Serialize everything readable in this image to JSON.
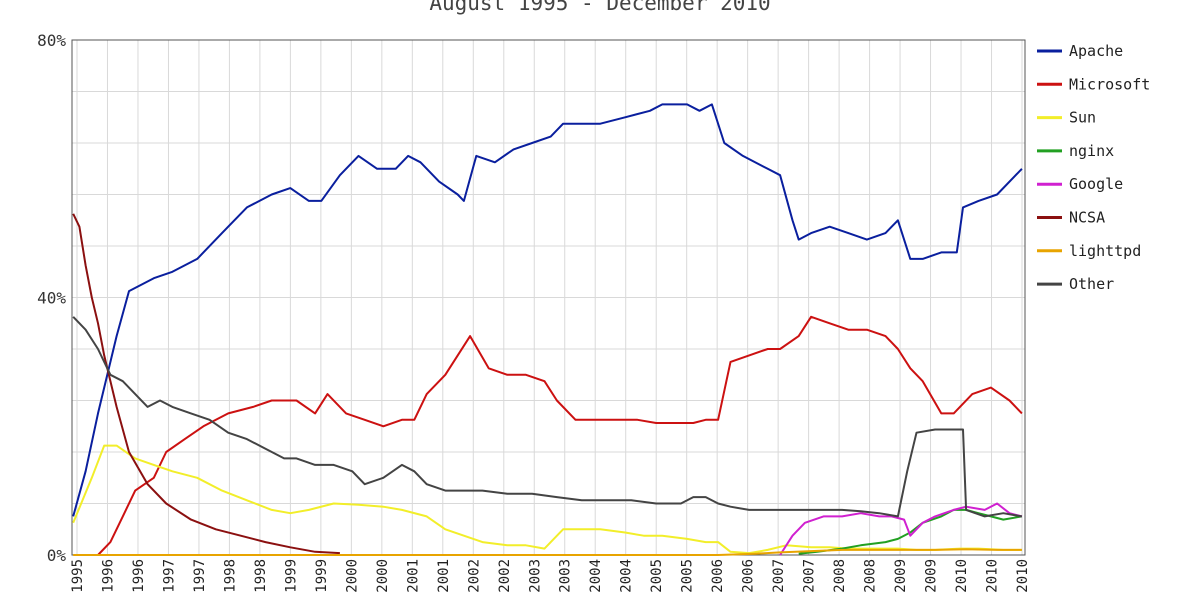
{
  "chart_data": {
    "type": "line",
    "subtitle": "August 1995 - December 2010",
    "xlabel": "",
    "ylabel": "",
    "ylim": [
      0,
      80
    ],
    "xlim": [
      1995.58,
      2010.95
    ],
    "grid": true,
    "legend_position": "right",
    "yticks": [
      "80%",
      "40%",
      "0%"
    ],
    "xticks": [
      "1995",
      "1996",
      "1996",
      "1997",
      "1997",
      "1998",
      "1998",
      "1999",
      "1999",
      "2000",
      "2000",
      "2001",
      "2001",
      "2002",
      "2002",
      "2003",
      "2003",
      "2004",
      "2004",
      "2005",
      "2005",
      "2006",
      "2006",
      "2007",
      "2007",
      "2008",
      "2008",
      "2009",
      "2009",
      "2010",
      "2010",
      "2010"
    ],
    "series": [
      {
        "name": "Apache",
        "color": "#0a1f9e",
        "x": [
          1995.6,
          1995.8,
          1996.0,
          1996.3,
          1996.5,
          1996.9,
          1997.2,
          1997.6,
          1998.0,
          1998.4,
          1998.8,
          1999.1,
          1999.4,
          1999.6,
          1999.9,
          2000.2,
          2000.5,
          2000.8,
          2001.0,
          2001.2,
          2001.5,
          2001.8,
          2001.9,
          2002.1,
          2002.4,
          2002.7,
          2003.0,
          2003.3,
          2003.5,
          2003.8,
          2004.1,
          2004.5,
          2004.9,
          2005.1,
          2005.5,
          2005.7,
          2005.9,
          2006.1,
          2006.4,
          2006.8,
          2007.0,
          2007.2,
          2007.3,
          2007.5,
          2007.8,
          2008.1,
          2008.4,
          2008.7,
          2008.9,
          2009.1,
          2009.3,
          2009.6,
          2009.85,
          2009.95,
          2010.2,
          2010.5,
          2010.8,
          2010.9
        ],
        "y": [
          6,
          13,
          22,
          34,
          41,
          43,
          44,
          46,
          50,
          54,
          56,
          57,
          55,
          55,
          59,
          62,
          60,
          60,
          62,
          61,
          58,
          56,
          55,
          62,
          61,
          63,
          64,
          65,
          67,
          67,
          67,
          68,
          69,
          70,
          70,
          69,
          70,
          64,
          62,
          60,
          59,
          52,
          49,
          50,
          51,
          50,
          49,
          50,
          52,
          46,
          46,
          47,
          47,
          54,
          55,
          56,
          59,
          60
        ]
      },
      {
        "name": "Microsoft",
        "color": "#cc1111",
        "x": [
          1996.0,
          1996.2,
          1996.4,
          1996.6,
          1996.9,
          1997.1,
          1997.4,
          1997.7,
          1998.1,
          1998.5,
          1998.8,
          1999.2,
          1999.5,
          1999.7,
          2000.0,
          2000.3,
          2000.6,
          2000.9,
          2001.1,
          2001.3,
          2001.6,
          2001.8,
          2002.0,
          2002.3,
          2002.6,
          2002.9,
          2003.2,
          2003.4,
          2003.7,
          2004.0,
          2004.3,
          2004.7,
          2005.0,
          2005.3,
          2005.6,
          2005.8,
          2006.0,
          2006.2,
          2006.5,
          2006.8,
          2007.0,
          2007.3,
          2007.5,
          2007.8,
          2008.1,
          2008.4,
          2008.7,
          2008.9,
          2009.1,
          2009.3,
          2009.6,
          2009.8,
          2010.1,
          2010.4,
          2010.7,
          2010.9
        ],
        "y": [
          0,
          2,
          6,
          10,
          12,
          16,
          18,
          20,
          22,
          23,
          24,
          24,
          22,
          25,
          22,
          21,
          20,
          21,
          21,
          25,
          28,
          31,
          34,
          29,
          28,
          28,
          27,
          24,
          21,
          21,
          21,
          21,
          20.5,
          20.5,
          20.5,
          21,
          21,
          30,
          31,
          32,
          32,
          34,
          37,
          36,
          35,
          35,
          34,
          32,
          29,
          27,
          22,
          22,
          25,
          26,
          24,
          22
        ]
      },
      {
        "name": "Sun",
        "color": "#f2ee2a",
        "x": [
          1995.6,
          1995.9,
          1996.1,
          1996.3,
          1996.6,
          1996.9,
          1997.2,
          1997.6,
          1998.0,
          1998.4,
          1998.8,
          1999.1,
          1999.4,
          1999.8,
          2000.2,
          2000.6,
          2000.9,
          2001.3,
          2001.6,
          2001.9,
          2002.2,
          2002.6,
          2002.9,
          2003.2,
          2003.5,
          2003.8,
          2004.1,
          2004.5,
          2004.8,
          2005.1,
          2005.5,
          2005.8,
          2006.0,
          2006.2,
          2006.5,
          2006.8,
          2007.1,
          2007.5,
          2007.8,
          2008.1,
          2008.5,
          2008.9,
          2009.2,
          2009.5,
          2009.9,
          2010.2,
          2010.6,
          2010.9
        ],
        "y": [
          5,
          12,
          17,
          17,
          15,
          14,
          13,
          12,
          10,
          8.5,
          7,
          6.5,
          7,
          8,
          7.8,
          7.5,
          7,
          6,
          4,
          3,
          2,
          1.5,
          1.5,
          1,
          4,
          4,
          4,
          3.5,
          3,
          3,
          2.5,
          2,
          2,
          0.5,
          0.3,
          0.8,
          1.5,
          1.2,
          1.2,
          1,
          1,
          1,
          0.8,
          0.8,
          1,
          1,
          0.8,
          0.8
        ]
      },
      {
        "name": "nginx",
        "color": "#22a022",
        "x": [
          2007.3,
          2007.6,
          2008.0,
          2008.3,
          2008.7,
          2008.9,
          2009.1,
          2009.3,
          2009.6,
          2009.8,
          2010.0,
          2010.2,
          2010.4,
          2010.6,
          2010.9
        ],
        "y": [
          0.2,
          0.5,
          1,
          1.5,
          2,
          2.5,
          3.5,
          5,
          6,
          7,
          7,
          6.5,
          6,
          5.5,
          6
        ]
      },
      {
        "name": "Google",
        "color": "#d020d0",
        "x": [
          2007.0,
          2007.2,
          2007.4,
          2007.7,
          2008.0,
          2008.3,
          2008.6,
          2008.8,
          2009.0,
          2009.1,
          2009.3,
          2009.5,
          2009.8,
          2010.0,
          2010.3,
          2010.5,
          2010.7,
          2010.9
        ],
        "y": [
          0,
          3,
          5,
          6,
          6,
          6.5,
          6,
          6,
          5.5,
          3,
          5,
          6,
          7,
          7.5,
          7,
          8,
          6.5,
          6
        ]
      },
      {
        "name": "NCSA",
        "color": "#8b1010",
        "x": [
          1995.6,
          1995.7,
          1995.8,
          1995.9,
          1996.0,
          1996.1,
          1996.3,
          1996.5,
          1996.8,
          1997.1,
          1997.5,
          1997.9,
          1998.3,
          1998.7,
          1999.1,
          1999.5,
          1999.9
        ],
        "y": [
          53,
          51,
          45,
          40,
          36,
          31,
          23,
          16,
          11,
          8,
          5.5,
          4,
          3,
          2,
          1.2,
          0.5,
          0.3
        ]
      },
      {
        "name": "lighttpd",
        "color": "#e8a400",
        "x": [
          1995.6,
          2006.0,
          2006.6,
          2007.0,
          2007.5,
          2008.0,
          2008.5,
          2009.0,
          2009.5,
          2010.0,
          2010.5,
          2010.9
        ],
        "y": [
          0,
          0,
          0.2,
          0.4,
          0.6,
          0.8,
          0.8,
          0.8,
          0.8,
          0.9,
          0.8,
          0.8
        ]
      },
      {
        "name": "Other",
        "color": "#444444",
        "x": [
          1995.6,
          1995.8,
          1996.0,
          1996.2,
          1996.4,
          1996.6,
          1996.8,
          1997.0,
          1997.2,
          1997.5,
          1997.8,
          1998.1,
          1998.4,
          1998.7,
          1999.0,
          1999.2,
          1999.5,
          1999.8,
          2000.1,
          2000.3,
          2000.6,
          2000.9,
          2001.1,
          2001.3,
          2001.6,
          2001.9,
          2002.2,
          2002.6,
          2003.0,
          2003.4,
          2003.8,
          2004.2,
          2004.6,
          2005.0,
          2005.4,
          2005.6,
          2005.8,
          2006.0,
          2006.2,
          2006.5,
          2006.8,
          2007.1,
          2007.4,
          2007.7,
          2008.0,
          2008.3,
          2008.6,
          2008.9,
          2009.05,
          2009.2,
          2009.5,
          2009.8,
          2009.95,
          2010.0,
          2010.3,
          2010.6,
          2010.9
        ],
        "y": [
          37,
          35,
          32,
          28,
          27,
          25,
          23,
          24,
          23,
          22,
          21,
          19,
          18,
          16.5,
          15,
          15,
          14,
          14,
          13,
          11,
          12,
          14,
          13,
          11,
          10,
          10,
          10,
          9.5,
          9.5,
          9,
          8.5,
          8.5,
          8.5,
          8,
          8,
          9,
          9,
          8,
          7.5,
          7,
          7,
          7,
          7,
          7,
          7,
          6.8,
          6.5,
          6,
          13,
          19,
          19.5,
          19.5,
          19.5,
          7,
          6,
          6.5,
          6
        ]
      }
    ]
  }
}
